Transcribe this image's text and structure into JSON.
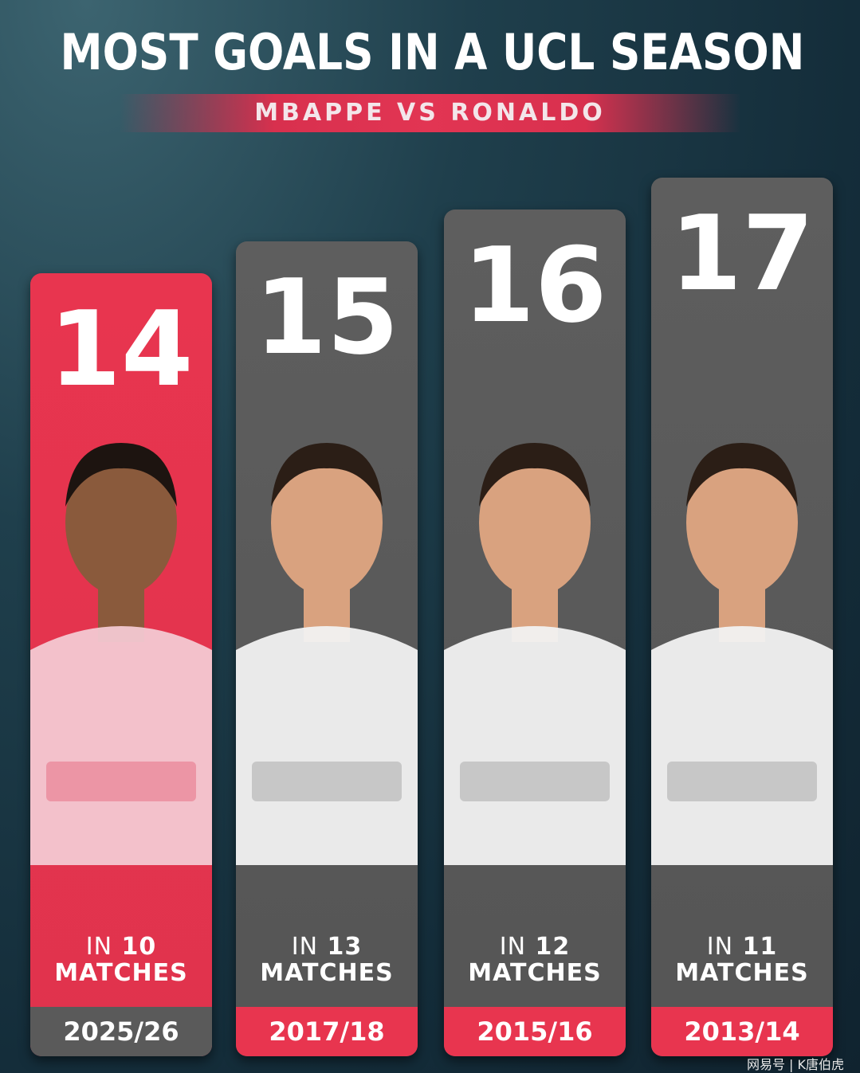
{
  "title": "MOST GOALS IN A UCL SEASON",
  "subtitle": "MBAPPE VS RONALDO",
  "colors": {
    "accent": "#e8354f",
    "bar_gray": "#5a5a5a",
    "background": "#16303d"
  },
  "chart_data": {
    "type": "bar",
    "title": "MOST GOALS IN A UCL SEASON",
    "subtitle": "MBAPPE VS RONALDO",
    "categories": [
      "2025/26",
      "2017/18",
      "2015/16",
      "2013/14"
    ],
    "values": [
      14,
      15,
      16,
      17
    ],
    "matches": [
      10,
      13,
      12,
      11
    ],
    "matches_prefix": "IN",
    "matches_suffix": "MATCHES",
    "highlight_index": 0,
    "players": [
      "Mbappe",
      "Ronaldo",
      "Ronaldo",
      "Ronaldo"
    ],
    "grid": false
  },
  "watermark": "网易号 | K唐伯虎"
}
